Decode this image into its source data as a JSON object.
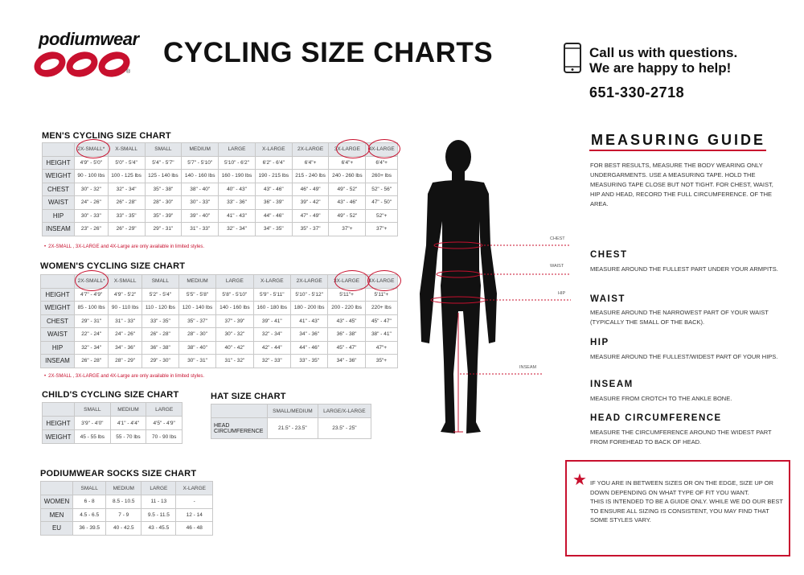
{
  "brand": {
    "name": "podiumwear",
    "registered": "®"
  },
  "title": "CYCLING SIZE CHARTS",
  "contact": {
    "line1": "Call us with questions.",
    "line2": "We are happy to help!",
    "phone": "651-330-2718"
  },
  "mens": {
    "title": "MEN'S CYCLING SIZE CHART",
    "headers": [
      "2X-SMALL*",
      "X-SMALL",
      "SMALL",
      "MEDIUM",
      "LARGE",
      "X-LARGE",
      "2X-LARGE",
      "3X-LARGE",
      "4X-LARGE"
    ],
    "rows": [
      {
        "label": "HEIGHT",
        "cells": [
          "4'9\" - 5'0\"",
          "5'0\" - 5'4\"",
          "5'4\" - 5'7\"",
          "5'7\" - 5'10\"",
          "5'10\" - 6'2\"",
          "6'2\" - 6'4\"",
          "6'4\"+",
          "6'4\"+",
          "6'4\"+"
        ]
      },
      {
        "label": "WEIGHT",
        "cells": [
          "90 - 100 lbs",
          "100 - 125 lbs",
          "125 - 140 lbs",
          "140 - 160 lbs",
          "160 - 190 lbs",
          "190 - 215 lbs",
          "215 - 240 lbs",
          "240 - 260 lbs",
          "260+ lbs"
        ]
      },
      {
        "label": "CHEST",
        "cells": [
          "30\" - 32\"",
          "32\" - 34\"",
          "35\" - 38\"",
          "38\" - 40\"",
          "40\" - 43\"",
          "43\" - 46\"",
          "46\" - 49\"",
          "49\" - 52\"",
          "52\" - 56\""
        ]
      },
      {
        "label": "WAIST",
        "cells": [
          "24\" - 26\"",
          "26\" - 28\"",
          "28\" - 30\"",
          "30\" - 33\"",
          "33\" - 36\"",
          "36\" - 39\"",
          "39\" - 42\"",
          "43\" - 46\"",
          "47\" - 50\""
        ]
      },
      {
        "label": "HIP",
        "cells": [
          "30\" - 33\"",
          "33\" - 35\"",
          "35\" - 39\"",
          "39\" - 40\"",
          "41\" - 43\"",
          "44\" - 46\"",
          "47\" - 49\"",
          "49\" - 52\"",
          "52\"+"
        ]
      },
      {
        "label": "INSEAM",
        "cells": [
          "23\" - 26\"",
          "26\" - 29\"",
          "29\" - 31\"",
          "31\" - 33\"",
          "32\" - 34\"",
          "34\" - 35\"",
          "35\" - 37\"",
          "37\"+",
          "37\"+"
        ]
      }
    ],
    "note_star": "•",
    "note": "2X-SMALL , 3X-LARGE and 4X-Large are only available in limited styles."
  },
  "womens": {
    "title": "WOMEN'S CYCLING SIZE CHART",
    "headers": [
      "2X-SMALL*",
      "X-SMALL",
      "SMALL",
      "MEDIUM",
      "LARGE",
      "X-LARGE",
      "2X-LARGE",
      "3X-LARGE",
      "4X-LARGE"
    ],
    "rows": [
      {
        "label": "HEIGHT",
        "cells": [
          "4'7\" - 4'9\"",
          "4'9\" - 5'2\"",
          "5'2\" - 5'4\"",
          "5'5\" - 5'8\"",
          "5'8\" - 5'10\"",
          "5'9\" - 5'11\"",
          "5'10\" - 5'12\"",
          "5'11\"+",
          "5'11\"+"
        ]
      },
      {
        "label": "WEIGHT",
        "cells": [
          "85 - 100 lbs",
          "90 - 110 lbs",
          "110 - 120 lbs",
          "120 - 140 lbs",
          "140 - 160 lbs",
          "160 - 180 lbs",
          "180 - 200 lbs",
          "200 - 220 lbs",
          "220+ lbs"
        ]
      },
      {
        "label": "CHEST",
        "cells": [
          "29\" - 31\"",
          "31\" - 33\"",
          "33\" - 35\"",
          "35\" - 37\"",
          "37\" - 39\"",
          "39\" - 41\"",
          "41\" - 43\"",
          "43\" - 45\"",
          "45\" - 47\""
        ]
      },
      {
        "label": "WAIST",
        "cells": [
          "22\" - 24\"",
          "24\" - 26\"",
          "26\" - 28\"",
          "28\" - 30\"",
          "30\" - 32\"",
          "32\" - 34\"",
          "34\" - 36\"",
          "36\" - 38\"",
          "38\" - 41\""
        ]
      },
      {
        "label": "HIP",
        "cells": [
          "32\" - 34\"",
          "34\" - 36\"",
          "36\" - 38\"",
          "38\" - 40\"",
          "40\" - 42\"",
          "42\" - 44\"",
          "44\" - 46\"",
          "45\" - 47\"",
          "47\"+"
        ]
      },
      {
        "label": "INSEAM",
        "cells": [
          "26\" - 28\"",
          "28\" - 29\"",
          "29\" - 30\"",
          "30\" - 31\"",
          "31\" - 32\"",
          "32\" - 33\"",
          "33\" - 35\"",
          "34\" - 36\"",
          "35\"+"
        ]
      }
    ],
    "note_star": "•",
    "note": "2X-SMALL , 3X-LARGE and 4X-Large are only available in limited styles."
  },
  "child": {
    "title": "CHILD'S CYCLING SIZE CHART",
    "headers": [
      "SMALL",
      "MEDIUM",
      "LARGE"
    ],
    "rows": [
      {
        "label": "HEIGHT",
        "cells": [
          "3'9\" - 4'0\"",
          "4'1\" - 4'4\"",
          "4'5\" - 4'9\""
        ]
      },
      {
        "label": "WEIGHT",
        "cells": [
          "45 - 55 lbs",
          "55 - 70 lbs",
          "70 - 90 lbs"
        ]
      }
    ]
  },
  "hat": {
    "title": "HAT SIZE CHART",
    "headers": [
      "SMALL/MEDIUM",
      "LARGE/X-LARGE"
    ],
    "rows": [
      {
        "label": "HEAD CIRCUMFERENCE",
        "cells": [
          "21.5\" - 23.5\"",
          "23.5\" - 25\""
        ]
      }
    ]
  },
  "socks": {
    "title": "PODIUMWEAR SOCKS SIZE CHART",
    "headers": [
      "SMALL",
      "MEDIUM",
      "LARGE",
      "X-LARGE"
    ],
    "rows": [
      {
        "label": "WOMEN",
        "cells": [
          "6 - 8",
          "8.5 - 10.5",
          "11 - 13",
          "-"
        ]
      },
      {
        "label": "MEN",
        "cells": [
          "4.5 - 6.5",
          "7 - 9",
          "9.5 - 11.5",
          "12 - 14"
        ]
      },
      {
        "label": "EU",
        "cells": [
          "36 - 39.5",
          "40 - 42.5",
          "43 - 45.5",
          "46 - 48"
        ]
      }
    ]
  },
  "body_labels": {
    "chest": "CHEST",
    "waist": "WAIST",
    "hip": "HIP",
    "inseam": "INSEAM"
  },
  "guide": {
    "title": "MEASURING GUIDE",
    "intro": "FOR BEST RESULTS, MEASURE THE BODY WEARING ONLY UNDERGARMENTS.  USE A MEASURING TAPE. HOLD THE MEASURING TAPE CLOSE BUT NOT TIGHT. FOR CHEST, WAIST, HIP AND HEAD, RECORD THE FULL CIRCUMFERENCE. OF THE AREA.",
    "chest_h": "CHEST",
    "chest_p": "MEASURE AROUND THE FULLEST PART UNDER YOUR ARMPITS.",
    "waist_h": "WAIST",
    "waist_p": "MEASURE AROUND THE NARROWEST PART OF YOUR WAIST (TYPICALLY THE SMALL OF THE BACK).",
    "hip_h": "HIP",
    "hip_p": "MEASURE AROUND THE FULLEST/WIDEST PART OF YOUR HIPS.",
    "inseam_h": "INSEAM",
    "inseam_p": "MEASURE FROM CROTCH TO THE ANKLE BONE.",
    "head_h": "HEAD CIRCUMFERENCE",
    "head_p": "MEASURE THE CIRCUMFERENCE AROUND THE WIDEST PART FROM FOREHEAD TO BACK OF HEAD."
  },
  "fit_note": {
    "star": "★",
    "line1": "IF YOU ARE IN BETWEEN SIZES OR ON THE EDGE, SIZE UP OR DOWN DEPENDING ON WHAT TYPE OF FIT YOU WANT.",
    "line2": "THIS IS INTENDED TO BE A GUIDE ONLY.  WHILE WE DO OUR BEST TO ENSURE ALL SIZING IS CONSISTENT, YOU MAY FIND THAT SOME STYLES VARY."
  },
  "colors": {
    "accent": "#c8102e",
    "header_bg": "#e3e6ea",
    "figure": "#111111"
  }
}
